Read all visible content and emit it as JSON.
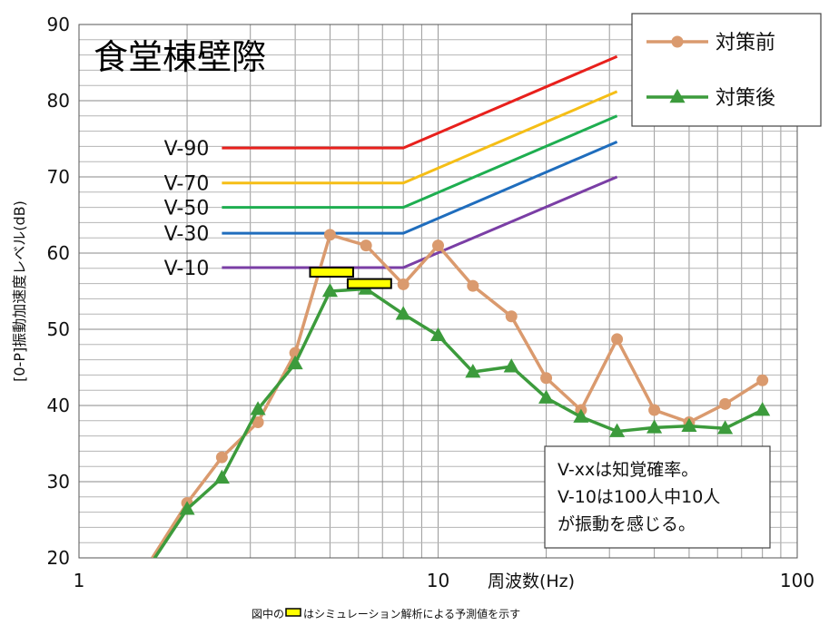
{
  "chart_data": {
    "type": "line",
    "title": "食堂棟壁際",
    "ylabel": "[0-P]振動加速度レベル(dB)",
    "xlabel": "周波数(Hz)",
    "x_scale": "log",
    "xlim": [
      1,
      100
    ],
    "ylim": [
      20,
      90
    ],
    "x_ticks": [
      "1",
      "10",
      "100"
    ],
    "y_ticks": [
      "20",
      "30",
      "40",
      "50",
      "60",
      "70",
      "80",
      "90"
    ],
    "grid": true,
    "legend_position": "top-right",
    "x": [
      1.6,
      2,
      2.5,
      3.15,
      4,
      5,
      6.3,
      8,
      10,
      12.5,
      16,
      20,
      25,
      31.5,
      40,
      50,
      63,
      80
    ],
    "series": [
      {
        "name": "対策前",
        "color": "#DA9A6E",
        "marker": "circle",
        "values": [
          20,
          27.2,
          33.2,
          37.8,
          46.9,
          62.4,
          61.0,
          55.9,
          61.0,
          55.7,
          51.7,
          43.6,
          39.4,
          48.7,
          39.4,
          37.8,
          40.2,
          43.3
        ]
      },
      {
        "name": "対策後",
        "color": "#3C9B3C",
        "marker": "triangle",
        "values": [
          19.5,
          26.4,
          30.5,
          39.5,
          45.5,
          55.0,
          55.3,
          52.0,
          49.2,
          44.4,
          45.1,
          41.0,
          38.5,
          36.6,
          37.1,
          37.3,
          37.0,
          39.4
        ]
      }
    ],
    "reference_curves": [
      {
        "label": "V-90",
        "color": "#E8201C",
        "flat_level": 73.8,
        "x_start": 2.5,
        "x_knee": 8,
        "x_end": 31.5,
        "end_level": 85.8
      },
      {
        "label": "V-70",
        "color": "#F5BE16",
        "flat_level": 69.2,
        "x_start": 2.5,
        "x_knee": 8,
        "x_end": 31.5,
        "end_level": 81.2
      },
      {
        "label": "V-50",
        "color": "#1EAE50",
        "flat_level": 66.0,
        "x_start": 2.5,
        "x_knee": 8,
        "x_end": 31.5,
        "end_level": 78.0
      },
      {
        "label": "V-30",
        "color": "#1F6DBD",
        "flat_level": 62.6,
        "x_start": 2.5,
        "x_knee": 8,
        "x_end": 31.5,
        "end_level": 74.6
      },
      {
        "label": "V-10",
        "color": "#7A3EA5",
        "flat_level": 58.1,
        "x_start": 2.5,
        "x_knee": 8,
        "x_end": 31.5,
        "end_level": 70.0
      }
    ],
    "prediction_markers": [
      {
        "x_from": 4.4,
        "x_to": 5.8,
        "y": 57.5
      },
      {
        "x_from": 5.6,
        "x_to": 7.4,
        "y": 56.0
      }
    ],
    "note": [
      "V-xxは知覚確率。",
      "V-10は100人中10人",
      "が振動を感じる。"
    ],
    "footnote": {
      "before": "図中の",
      "after": "はシミュレーション解析による予測値を示す"
    }
  }
}
